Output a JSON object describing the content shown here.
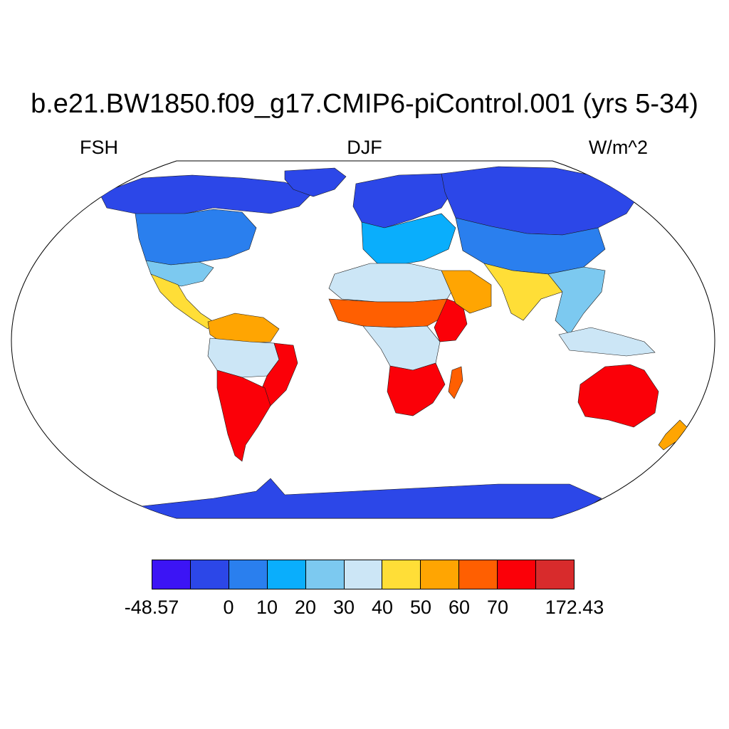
{
  "header": {
    "title": "b.e21.BW1850.f09_g17.CMIP6-piControl.001 (yrs 5-34)",
    "left_label": "FSH",
    "center_label": "DJF",
    "right_label": "W/m^2"
  },
  "map": {
    "projection": "Robinson",
    "variable": "FSH",
    "season": "DJF",
    "units": "W/m^2",
    "regions": [
      {
        "name": "north-america-arctic",
        "value": -20
      },
      {
        "name": "north-america-mid",
        "value": 5
      },
      {
        "name": "north-america-south",
        "value": 25
      },
      {
        "name": "greenland-coast",
        "value": -30
      },
      {
        "name": "mexico-central-america",
        "value": 45
      },
      {
        "name": "northern-south-america",
        "value": 55
      },
      {
        "name": "amazon",
        "value": 30
      },
      {
        "name": "eastern-brazil",
        "value": 70
      },
      {
        "name": "southern-south-america",
        "value": 90
      },
      {
        "name": "northern-europe",
        "value": -15
      },
      {
        "name": "europe-mediterranean",
        "value": 15
      },
      {
        "name": "sahara",
        "value": 35
      },
      {
        "name": "sahel",
        "value": 65
      },
      {
        "name": "horn-of-africa",
        "value": 75
      },
      {
        "name": "central-africa",
        "value": 30
      },
      {
        "name": "southern-africa",
        "value": 80
      },
      {
        "name": "madagascar",
        "value": 60
      },
      {
        "name": "arabia",
        "value": 55
      },
      {
        "name": "siberia",
        "value": -30
      },
      {
        "name": "central-asia",
        "value": 5
      },
      {
        "name": "south-asia",
        "value": 45
      },
      {
        "name": "southeast-asia",
        "value": 25
      },
      {
        "name": "indonesia",
        "value": 30
      },
      {
        "name": "australia",
        "value": 95
      },
      {
        "name": "new-zealand",
        "value": 55
      },
      {
        "name": "antarctica",
        "value": -20
      }
    ]
  },
  "colorbar": {
    "levels": [
      -48.57,
      0,
      10,
      20,
      30,
      40,
      50,
      60,
      70,
      172.43
    ],
    "colors": [
      "#3c14f5",
      "#2c47e8",
      "#2a7fee",
      "#0aaefc",
      "#7cc9f0",
      "#cce6f6",
      "#ffde37",
      "#ffa502",
      "#ff5f01",
      "#fb0008",
      "#d82b2c"
    ],
    "labels": [
      {
        "text": "-48.57",
        "at": 0
      },
      {
        "text": "0",
        "at": 2
      },
      {
        "text": "10",
        "at": 3
      },
      {
        "text": "20",
        "at": 4
      },
      {
        "text": "30",
        "at": 5
      },
      {
        "text": "40",
        "at": 6
      },
      {
        "text": "50",
        "at": 7
      },
      {
        "text": "60",
        "at": 8
      },
      {
        "text": "70",
        "at": 9
      },
      {
        "text": "172.43",
        "at": 11
      }
    ]
  }
}
